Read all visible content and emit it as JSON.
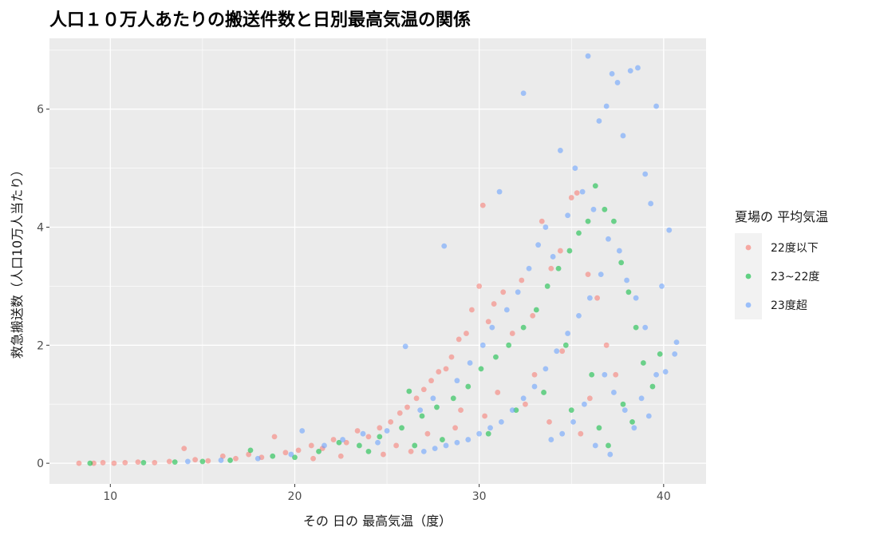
{
  "chart_data": {
    "type": "scatter",
    "title": "人口１０万人あたりの搬送件数と日別最高気温の関係",
    "xlabel": "その 日の 最高気温（度）",
    "ylabel": "救急搬送数（人口10万人当たり）",
    "xlim": [
      6.7,
      42.3
    ],
    "ylim": [
      -0.35,
      7.2
    ],
    "x_ticks": [
      10,
      20,
      30,
      40
    ],
    "y_ticks": [
      0,
      2,
      4,
      6
    ],
    "x_tick_labels": [
      "10",
      "20",
      "30",
      "40"
    ],
    "y_tick_labels": [
      "0",
      "2",
      "4",
      "6"
    ],
    "grid": true,
    "legend": {
      "title": "夏場の 平均気温",
      "position": "right"
    },
    "series": [
      {
        "name": "22度以下",
        "color": "#F8766D",
        "points": [
          [
            8.3,
            0
          ],
          [
            9.1,
            0
          ],
          [
            9.6,
            0.01
          ],
          [
            10.2,
            0
          ],
          [
            10.8,
            0.01
          ],
          [
            11.5,
            0.02
          ],
          [
            12.4,
            0.01
          ],
          [
            13.2,
            0.03
          ],
          [
            14.0,
            0.25
          ],
          [
            14.6,
            0.06
          ],
          [
            15.3,
            0.04
          ],
          [
            16.1,
            0.12
          ],
          [
            16.8,
            0.08
          ],
          [
            17.5,
            0.15
          ],
          [
            18.2,
            0.1
          ],
          [
            18.9,
            0.45
          ],
          [
            19.5,
            0.18
          ],
          [
            20.2,
            0.22
          ],
          [
            20.9,
            0.3
          ],
          [
            21.5,
            0.25
          ],
          [
            22.1,
            0.4
          ],
          [
            22.8,
            0.35
          ],
          [
            23.4,
            0.55
          ],
          [
            24.0,
            0.45
          ],
          [
            24.6,
            0.6
          ],
          [
            25.2,
            0.7
          ],
          [
            25.7,
            0.85
          ],
          [
            26.1,
            0.95
          ],
          [
            26.6,
            1.1
          ],
          [
            27.0,
            1.25
          ],
          [
            27.4,
            1.4
          ],
          [
            27.8,
            1.55
          ],
          [
            28.2,
            1.6
          ],
          [
            28.5,
            1.8
          ],
          [
            28.9,
            2.1
          ],
          [
            29.3,
            2.2
          ],
          [
            29.6,
            2.6
          ],
          [
            30.0,
            3.0
          ],
          [
            30.2,
            4.37
          ],
          [
            30.5,
            2.4
          ],
          [
            30.8,
            2.7
          ],
          [
            31.3,
            2.9
          ],
          [
            31.8,
            2.2
          ],
          [
            32.3,
            3.1
          ],
          [
            32.9,
            2.5
          ],
          [
            33.4,
            4.1
          ],
          [
            33.9,
            3.3
          ],
          [
            34.4,
            3.6
          ],
          [
            35.0,
            4.5
          ],
          [
            35.3,
            4.58
          ],
          [
            35.9,
            3.2
          ],
          [
            36.4,
            2.8
          ],
          [
            36.9,
            2.0
          ],
          [
            37.4,
            1.5
          ],
          [
            22.5,
            0.12
          ],
          [
            25.5,
            0.3
          ],
          [
            27.2,
            0.5
          ],
          [
            29.0,
            0.9
          ],
          [
            31.0,
            1.2
          ],
          [
            33.0,
            1.5
          ],
          [
            34.5,
            1.9
          ],
          [
            36.0,
            1.1
          ],
          [
            26.3,
            0.2
          ],
          [
            28.7,
            0.6
          ],
          [
            30.3,
            0.8
          ],
          [
            32.5,
            1.0
          ],
          [
            33.8,
            0.7
          ],
          [
            35.5,
            0.5
          ],
          [
            24.8,
            0.15
          ],
          [
            21.0,
            0.08
          ]
        ]
      },
      {
        "name": "23~22度",
        "color": "#00BA38",
        "points": [
          [
            8.9,
            0
          ],
          [
            11.8,
            0.01
          ],
          [
            13.5,
            0.02
          ],
          [
            15.0,
            0.03
          ],
          [
            16.5,
            0.05
          ],
          [
            17.6,
            0.22
          ],
          [
            18.8,
            0.12
          ],
          [
            20.0,
            0.1
          ],
          [
            21.3,
            0.2
          ],
          [
            22.4,
            0.35
          ],
          [
            23.5,
            0.3
          ],
          [
            24.6,
            0.45
          ],
          [
            25.8,
            0.6
          ],
          [
            26.2,
            1.22
          ],
          [
            26.9,
            0.8
          ],
          [
            27.7,
            0.95
          ],
          [
            28.6,
            1.1
          ],
          [
            29.4,
            1.3
          ],
          [
            30.1,
            1.6
          ],
          [
            30.9,
            1.8
          ],
          [
            31.6,
            2.0
          ],
          [
            32.4,
            2.3
          ],
          [
            33.1,
            2.6
          ],
          [
            33.7,
            3.0
          ],
          [
            34.3,
            3.3
          ],
          [
            34.9,
            3.6
          ],
          [
            35.4,
            3.9
          ],
          [
            35.9,
            4.1
          ],
          [
            36.3,
            4.7
          ],
          [
            36.8,
            4.3
          ],
          [
            37.3,
            4.1
          ],
          [
            37.7,
            3.4
          ],
          [
            38.1,
            2.9
          ],
          [
            38.5,
            2.3
          ],
          [
            38.9,
            1.7
          ],
          [
            39.4,
            1.3
          ],
          [
            39.8,
            1.85
          ],
          [
            36.5,
            0.6
          ],
          [
            37.0,
            0.3
          ],
          [
            35.0,
            0.9
          ],
          [
            33.5,
            1.2
          ],
          [
            32.0,
            0.9
          ],
          [
            30.5,
            0.5
          ],
          [
            28.0,
            0.4
          ],
          [
            26.5,
            0.3
          ],
          [
            24.0,
            0.2
          ],
          [
            37.8,
            1.0
          ],
          [
            38.3,
            0.7
          ],
          [
            36.1,
            1.5
          ],
          [
            34.7,
            2.0
          ]
        ]
      },
      {
        "name": "23度超",
        "color": "#619CFF",
        "points": [
          [
            14.2,
            0.03
          ],
          [
            16.0,
            0.05
          ],
          [
            18.0,
            0.08
          ],
          [
            19.8,
            0.15
          ],
          [
            20.4,
            0.55
          ],
          [
            21.6,
            0.3
          ],
          [
            22.6,
            0.4
          ],
          [
            23.7,
            0.5
          ],
          [
            24.5,
            0.35
          ],
          [
            25.0,
            0.55
          ],
          [
            26.0,
            1.98
          ],
          [
            26.8,
            0.9
          ],
          [
            27.5,
            1.1
          ],
          [
            28.1,
            3.68
          ],
          [
            28.8,
            1.4
          ],
          [
            29.5,
            1.7
          ],
          [
            30.2,
            2.0
          ],
          [
            30.7,
            2.3
          ],
          [
            31.1,
            4.6
          ],
          [
            31.5,
            2.6
          ],
          [
            32.1,
            2.9
          ],
          [
            32.4,
            6.27
          ],
          [
            32.7,
            3.3
          ],
          [
            33.2,
            3.7
          ],
          [
            33.6,
            4.0
          ],
          [
            34.0,
            3.5
          ],
          [
            34.4,
            5.3
          ],
          [
            34.8,
            4.2
          ],
          [
            35.2,
            5.0
          ],
          [
            35.6,
            4.6
          ],
          [
            35.9,
            6.9
          ],
          [
            36.2,
            4.3
          ],
          [
            36.5,
            5.8
          ],
          [
            36.9,
            6.05
          ],
          [
            37.2,
            6.6
          ],
          [
            37.5,
            6.45
          ],
          [
            37.8,
            5.55
          ],
          [
            38.2,
            6.65
          ],
          [
            38.6,
            6.7
          ],
          [
            39.0,
            4.9
          ],
          [
            39.3,
            4.4
          ],
          [
            39.6,
            6.05
          ],
          [
            39.9,
            3.0
          ],
          [
            40.3,
            3.95
          ],
          [
            40.6,
            1.85
          ],
          [
            40.7,
            2.05
          ],
          [
            40.1,
            1.55
          ],
          [
            39.6,
            1.5
          ],
          [
            39.0,
            2.3
          ],
          [
            38.5,
            2.8
          ],
          [
            38.0,
            3.1
          ],
          [
            37.6,
            3.6
          ],
          [
            37.0,
            3.8
          ],
          [
            36.6,
            3.2
          ],
          [
            36.0,
            2.8
          ],
          [
            35.4,
            2.5
          ],
          [
            34.8,
            2.2
          ],
          [
            34.2,
            1.9
          ],
          [
            33.6,
            1.6
          ],
          [
            33.0,
            1.3
          ],
          [
            32.4,
            1.1
          ],
          [
            31.8,
            0.9
          ],
          [
            31.2,
            0.7
          ],
          [
            30.6,
            0.6
          ],
          [
            30.0,
            0.5
          ],
          [
            29.4,
            0.4
          ],
          [
            28.8,
            0.35
          ],
          [
            28.2,
            0.3
          ],
          [
            27.6,
            0.25
          ],
          [
            27.0,
            0.2
          ],
          [
            36.8,
            1.5
          ],
          [
            37.3,
            1.2
          ],
          [
            37.9,
            0.9
          ],
          [
            38.4,
            0.6
          ],
          [
            35.7,
            1.0
          ],
          [
            35.1,
            0.7
          ],
          [
            34.5,
            0.5
          ],
          [
            33.9,
            0.4
          ],
          [
            36.3,
            0.3
          ],
          [
            37.1,
            0.15
          ],
          [
            38.8,
            1.1
          ],
          [
            39.2,
            0.8
          ]
        ]
      }
    ]
  }
}
